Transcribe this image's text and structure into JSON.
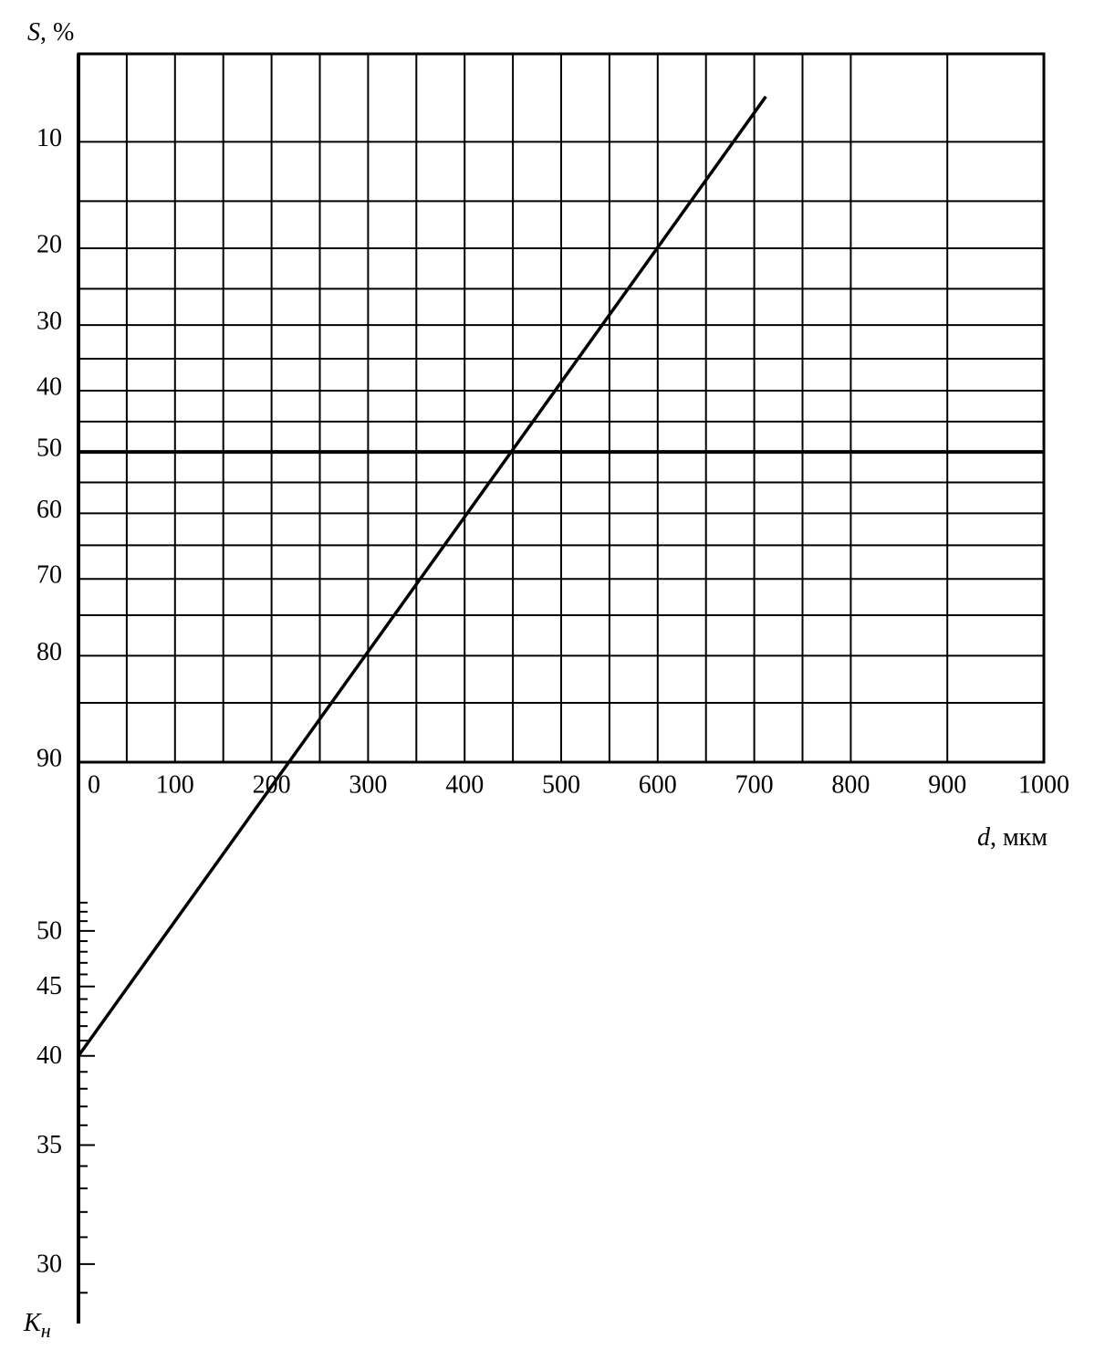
{
  "chart_data": {
    "type": "nomogram",
    "y_label": {
      "symbol": "S",
      "unit": ", %"
    },
    "x_label": {
      "symbol": "d",
      "unit": ", мкм"
    },
    "k_label": {
      "symbol": "K",
      "sub": "н"
    },
    "xlim": [
      0,
      1000
    ],
    "xticks": [
      0,
      100,
      200,
      300,
      400,
      500,
      600,
      700,
      800,
      900,
      1000
    ],
    "xgrid": [
      50,
      150,
      250,
      350,
      450,
      550,
      650,
      750
    ],
    "yscale": "probability",
    "ylim": [
      5,
      90
    ],
    "yticks": [
      10,
      20,
      30,
      40,
      50,
      60,
      70,
      80,
      90
    ],
    "ygrid": [
      15,
      25,
      35,
      45,
      55,
      65,
      75,
      85
    ],
    "kscale": "reciprocal",
    "klim": [
      75.5,
      28
    ],
    "kticks": [
      30,
      35,
      40,
      45,
      50
    ],
    "kminor": [
      29,
      31,
      32,
      33,
      34,
      36,
      37,
      38,
      39,
      41,
      42,
      43,
      44,
      46,
      47,
      48,
      49,
      51,
      52,
      53
    ],
    "line": {
      "start": {
        "d": 0,
        "Kn": 40
      },
      "end": {
        "d": 712,
        "S": 7.1
      }
    },
    "color": "#000000"
  }
}
